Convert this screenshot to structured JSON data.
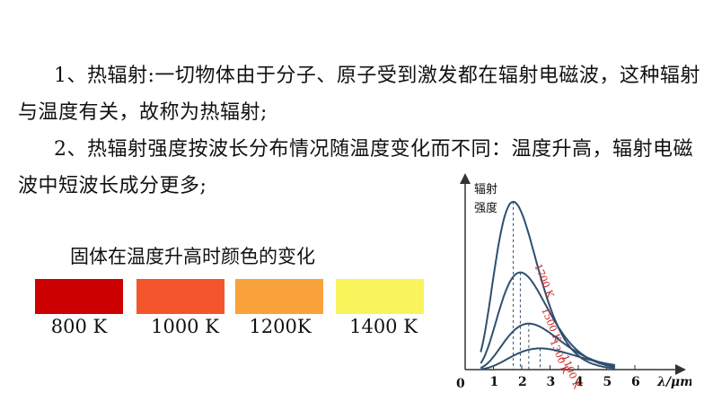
{
  "paragraphs": [
    "1、热辐射:一切物体由于分子、原子受到激发都在辐射电磁波，这种辐射与温度有关，故称为热辐射;",
    "2、热辐射强度按波长分布情况随温度变化而不同：温度升高，辐射电磁波中短波长成分更多;"
  ],
  "swatches": {
    "title": "固体在温度升高时颜色的变化",
    "items": [
      {
        "label": "800 K",
        "color": "#cc0000"
      },
      {
        "label": "1000 K",
        "color": "#f5552d"
      },
      {
        "label": "1200K",
        "color": "#f9a23c"
      },
      {
        "label": "1400 K",
        "color": "#f9f35c"
      }
    ]
  },
  "chart_data": {
    "type": "line",
    "ylabel": "辐射强度",
    "xlabel": "λ/μm",
    "origin_label": "0",
    "xlim": [
      0,
      7
    ],
    "ylim": [
      0,
      1
    ],
    "xticks": [
      "1",
      "2",
      "3",
      "4",
      "5",
      "6"
    ],
    "series_color": "#2f4f6f",
    "label_color": "#cc2222",
    "series": [
      {
        "name": "1700 K",
        "peak_x": 1.7,
        "peak_y": 0.95
      },
      {
        "name": "1500 K",
        "peak_x": 1.95,
        "peak_y": 0.55
      },
      {
        "name": "1300 K",
        "peak_x": 2.25,
        "peak_y": 0.26
      },
      {
        "name": "1100 K",
        "peak_x": 2.65,
        "peak_y": 0.12
      }
    ]
  }
}
